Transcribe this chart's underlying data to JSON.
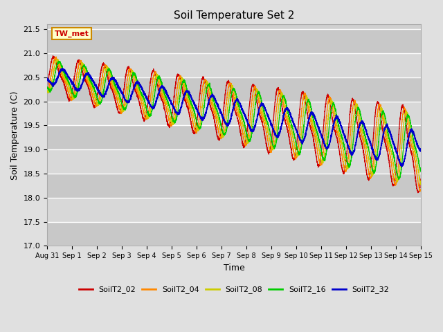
{
  "title": "Soil Temperature Set 2",
  "xlabel": "Time",
  "ylabel": "Soil Temperature (C)",
  "ylim": [
    17.0,
    21.6
  ],
  "yticks": [
    17.0,
    17.5,
    18.0,
    18.5,
    19.0,
    19.5,
    20.0,
    20.5,
    21.0,
    21.5
  ],
  "fig_bg_color": "#e0e0e0",
  "plot_bg_color": "#d0d0d0",
  "legend_labels": [
    "SoilT2_02",
    "SoilT2_04",
    "SoilT2_08",
    "SoilT2_16",
    "SoilT2_32"
  ],
  "line_colors": [
    "#cc0000",
    "#ff8800",
    "#cccc00",
    "#00cc00",
    "#0000cc"
  ],
  "annotation_text": "TW_met",
  "annotation_color": "#cc0000",
  "annotation_bg": "#ffffcc",
  "annotation_border": "#cc8800",
  "tick_labels": [
    "Aug 31",
    "Sep 1",
    "Sep 2",
    "Sep 3",
    "Sep 4",
    "Sep 5",
    "Sep 6",
    "Sep 7",
    "Sep 8",
    "Sep 9",
    "Sep 10",
    "Sep 11",
    "Sep 12",
    "Sep 13",
    "Sep 14",
    "Sep 15"
  ],
  "n_points": 4320,
  "start_day": 0,
  "end_day": 15
}
